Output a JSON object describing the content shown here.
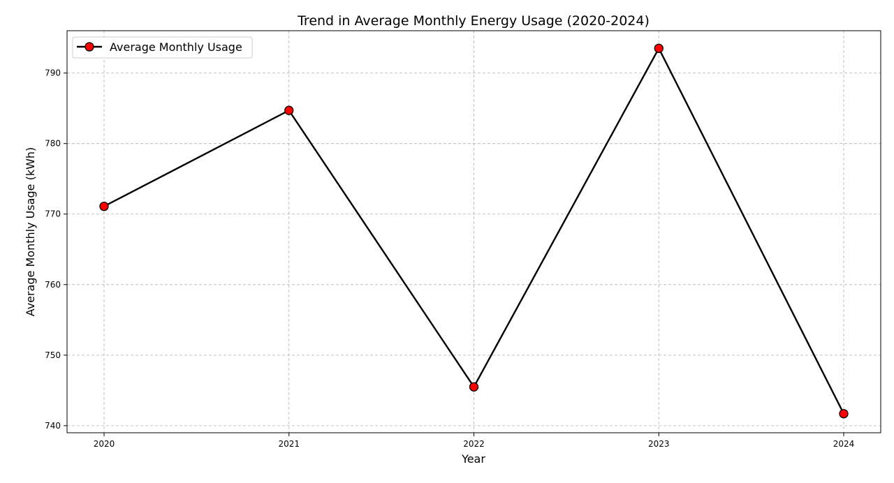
{
  "chart_data": {
    "type": "line",
    "title": "Trend in Average Monthly Energy Usage (2020-2024)",
    "xlabel": "Year",
    "ylabel": "Average Monthly Usage (kWh)",
    "categories": [
      "2020",
      "2021",
      "2022",
      "2023",
      "2024"
    ],
    "series": [
      {
        "name": "Average Monthly Usage",
        "values": [
          771.1,
          784.7,
          745.5,
          793.5,
          741.7
        ],
        "line_color": "#000000",
        "marker_color": "#ff0000"
      }
    ],
    "ylim": [
      739,
      796
    ],
    "yticks": [
      740,
      750,
      760,
      770,
      780,
      790
    ],
    "grid": true,
    "legend_position": "top-left"
  }
}
